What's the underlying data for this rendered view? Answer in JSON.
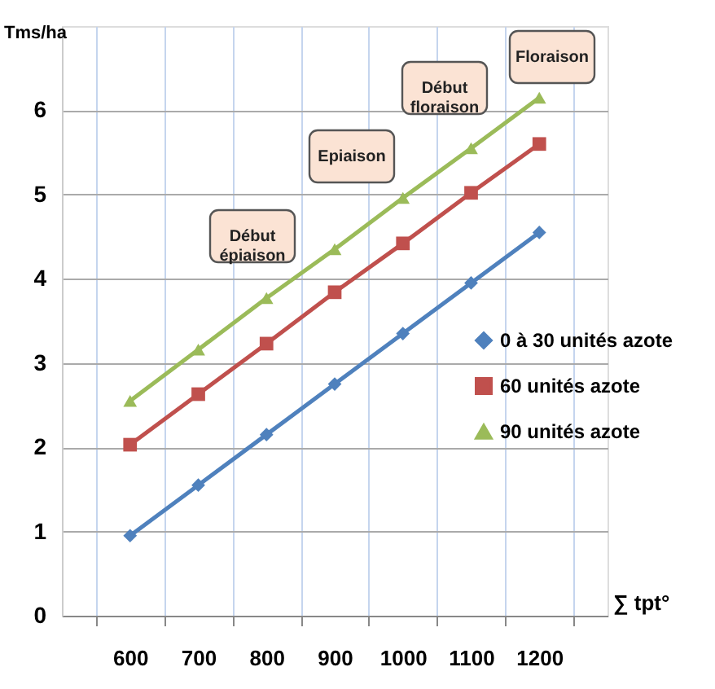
{
  "chart_data": {
    "type": "line",
    "categories": [
      "600",
      "700",
      "800",
      "900",
      "1000",
      "1100",
      "1200"
    ],
    "series": [
      {
        "name": "0  à 30 unités azote",
        "color": "#4f81bd",
        "marker": "diamond",
        "values": [
          0.95,
          1.55,
          2.15,
          2.75,
          3.35,
          3.95,
          4.55
        ]
      },
      {
        "name": "60 unités azote",
        "color": "#c0504d",
        "marker": "square",
        "values": [
          2.03,
          2.63,
          3.23,
          3.84,
          4.42,
          5.02,
          5.6
        ]
      },
      {
        "name": "90 unités azote",
        "color": "#9bbb59",
        "marker": "triangle",
        "values": [
          2.55,
          3.16,
          3.77,
          4.35,
          4.96,
          5.55,
          6.15
        ]
      }
    ],
    "xlabel": "∑ tpt°",
    "ylabel": "Tms/ha",
    "ylim": [
      0,
      7
    ],
    "yticks": [
      0,
      1,
      2,
      3,
      4,
      5,
      6
    ],
    "annotations": [
      "Début épiaison",
      "Epiaison",
      "Début floraison",
      "Floraison"
    ],
    "grid": true,
    "legend": "right"
  }
}
